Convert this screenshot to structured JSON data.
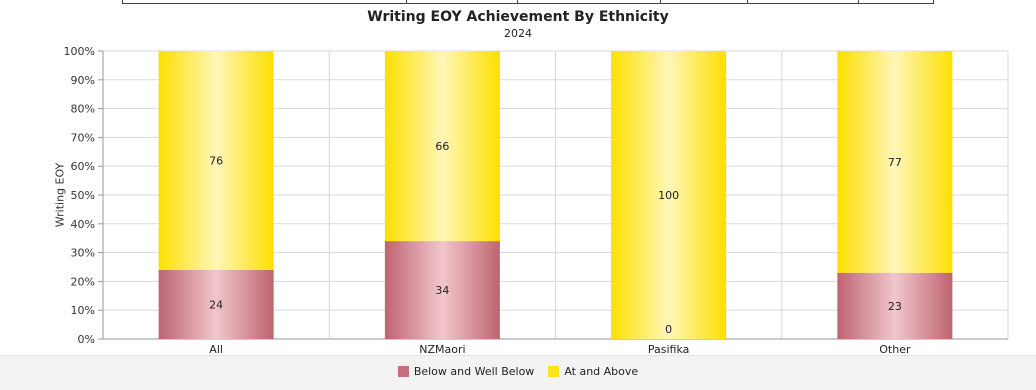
{
  "chart_data": {
    "type": "bar",
    "stacked": true,
    "title": "Writing EOY Achievement By Ethnicity",
    "subtitle": "2024",
    "xlabel": "",
    "ylabel": "Writing EOY",
    "categories": [
      "All",
      "NZMaori",
      "Pasifika",
      "Other"
    ],
    "series": [
      {
        "name": "Below and Well Below",
        "values": [
          24,
          34,
          0,
          23
        ],
        "color": "#c2707a"
      },
      {
        "name": "At and Above",
        "values": [
          76,
          66,
          100,
          77
        ],
        "color": "#fde21e"
      }
    ],
    "ylim": [
      0,
      100
    ],
    "yticks": [
      "0%",
      "10%",
      "20%",
      "30%",
      "40%",
      "50%",
      "60%",
      "70%",
      "80%",
      "90%",
      "100%"
    ],
    "grid": true,
    "legend_position": "bottom"
  }
}
